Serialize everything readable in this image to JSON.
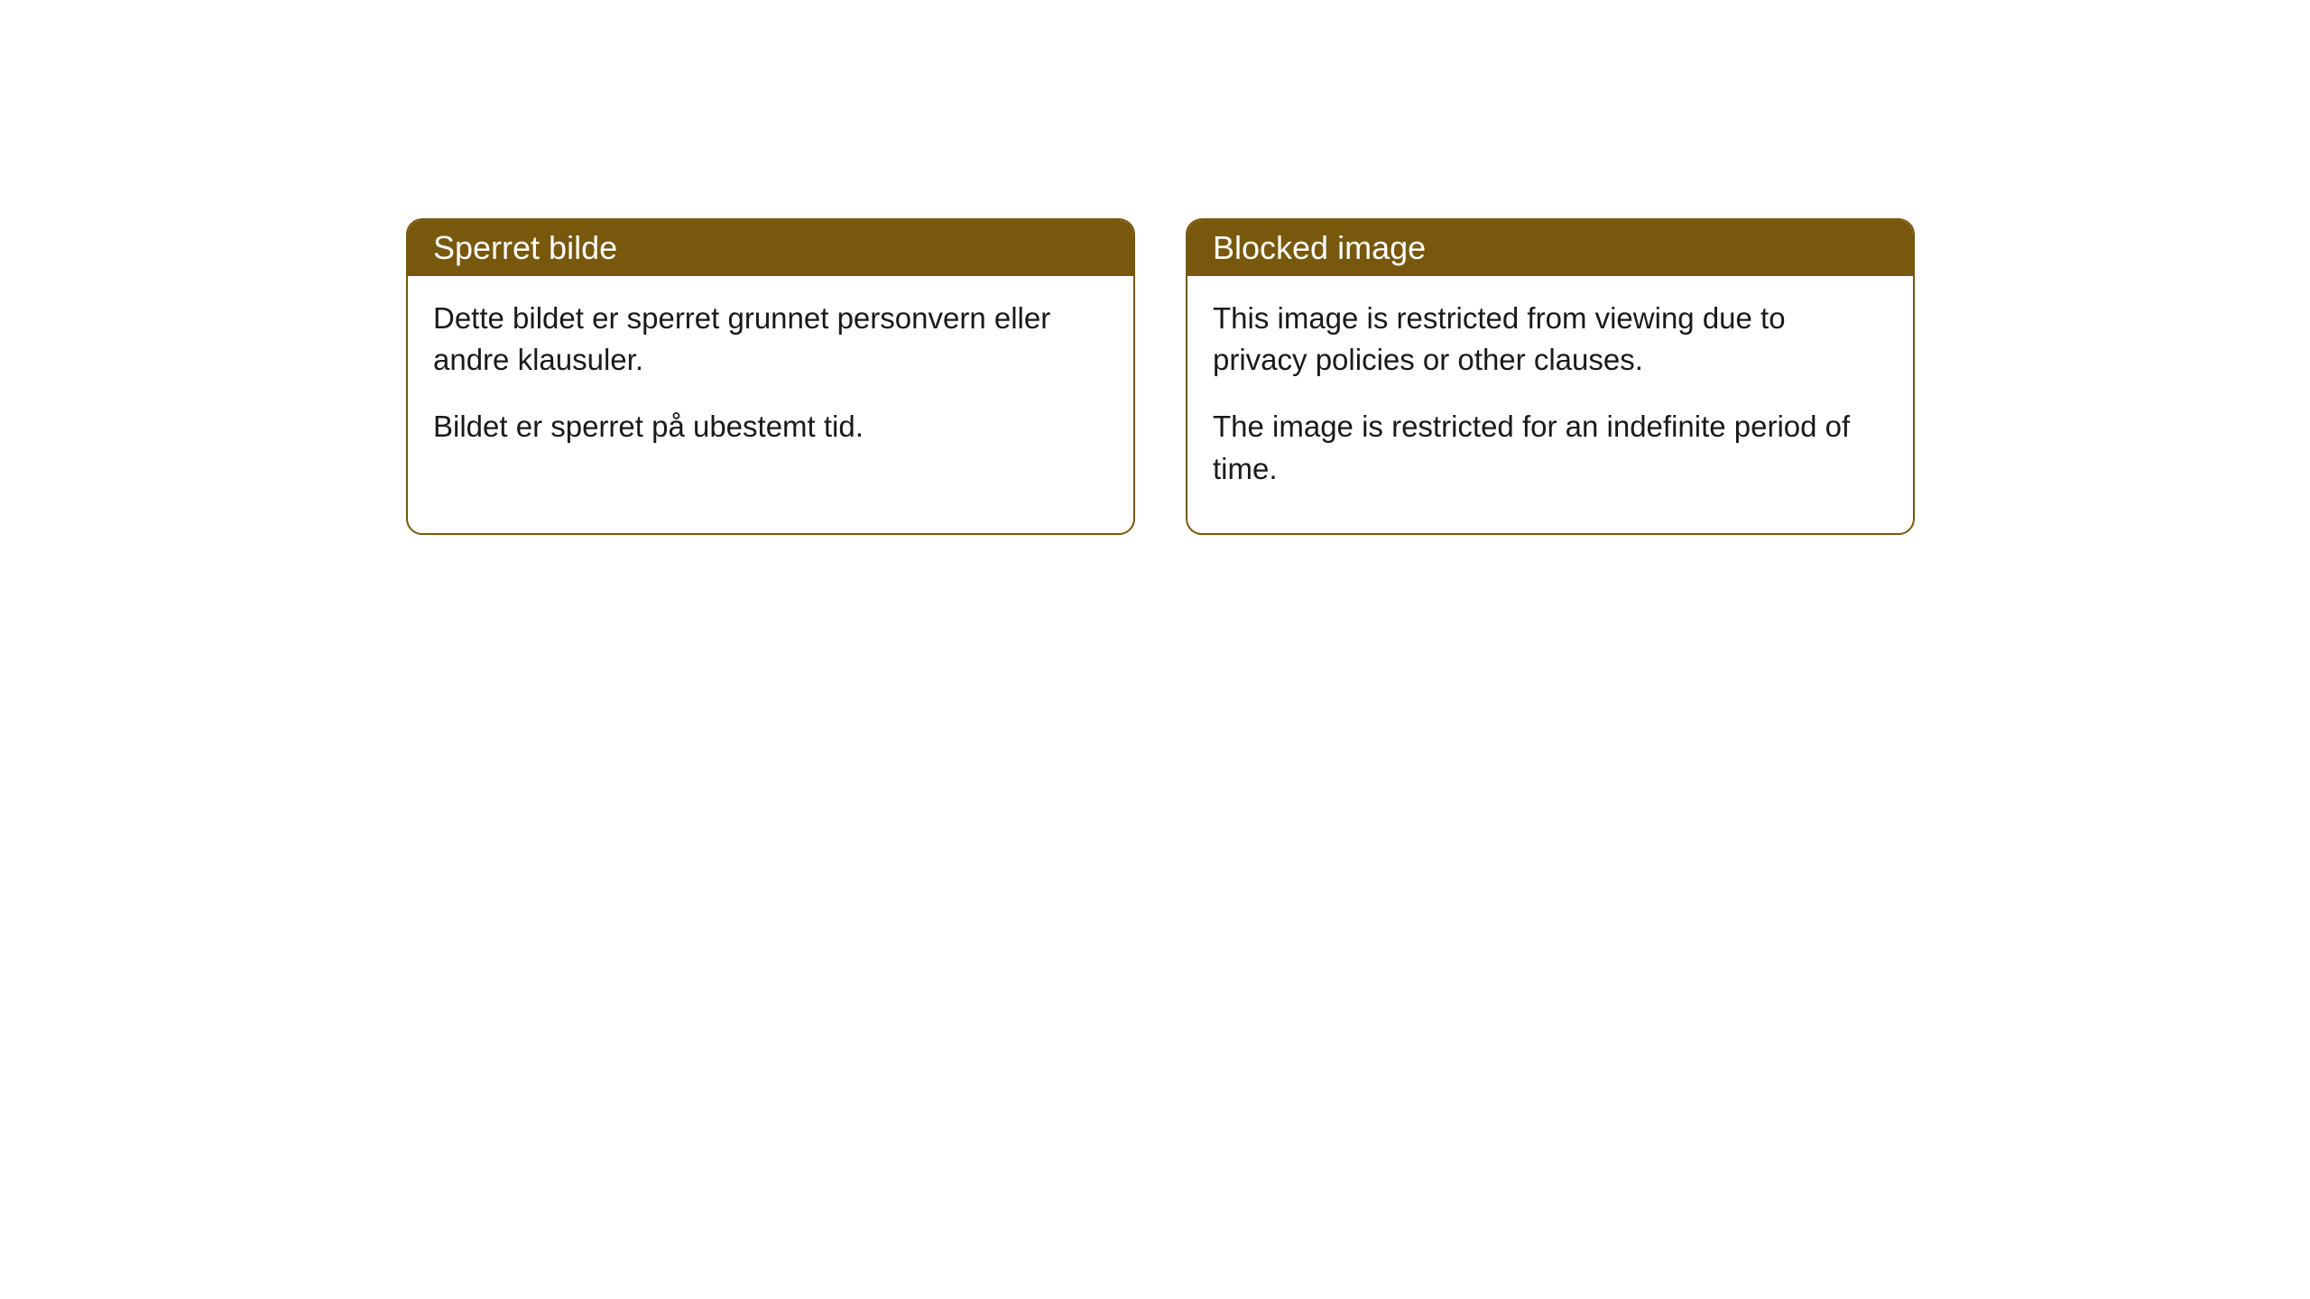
{
  "cards": [
    {
      "title": "Sperret bilde",
      "paragraph1": "Dette bildet er sperret grunnet personvern eller andre klausuler.",
      "paragraph2": "Bildet er sperret på ubestemt tid."
    },
    {
      "title": "Blocked image",
      "paragraph1": "This image is restricted from viewing due to privacy policies or other clauses.",
      "paragraph2": "The image is restricted for an indefinite period of time."
    }
  ],
  "styling": {
    "header_bg_color": "#78580d",
    "header_text_color": "#ffffff",
    "border_color": "#78580d",
    "body_bg_color": "#ffffff",
    "body_text_color": "#1a1a1a",
    "border_radius": 18,
    "title_fontsize": 36,
    "body_fontsize": 33
  }
}
